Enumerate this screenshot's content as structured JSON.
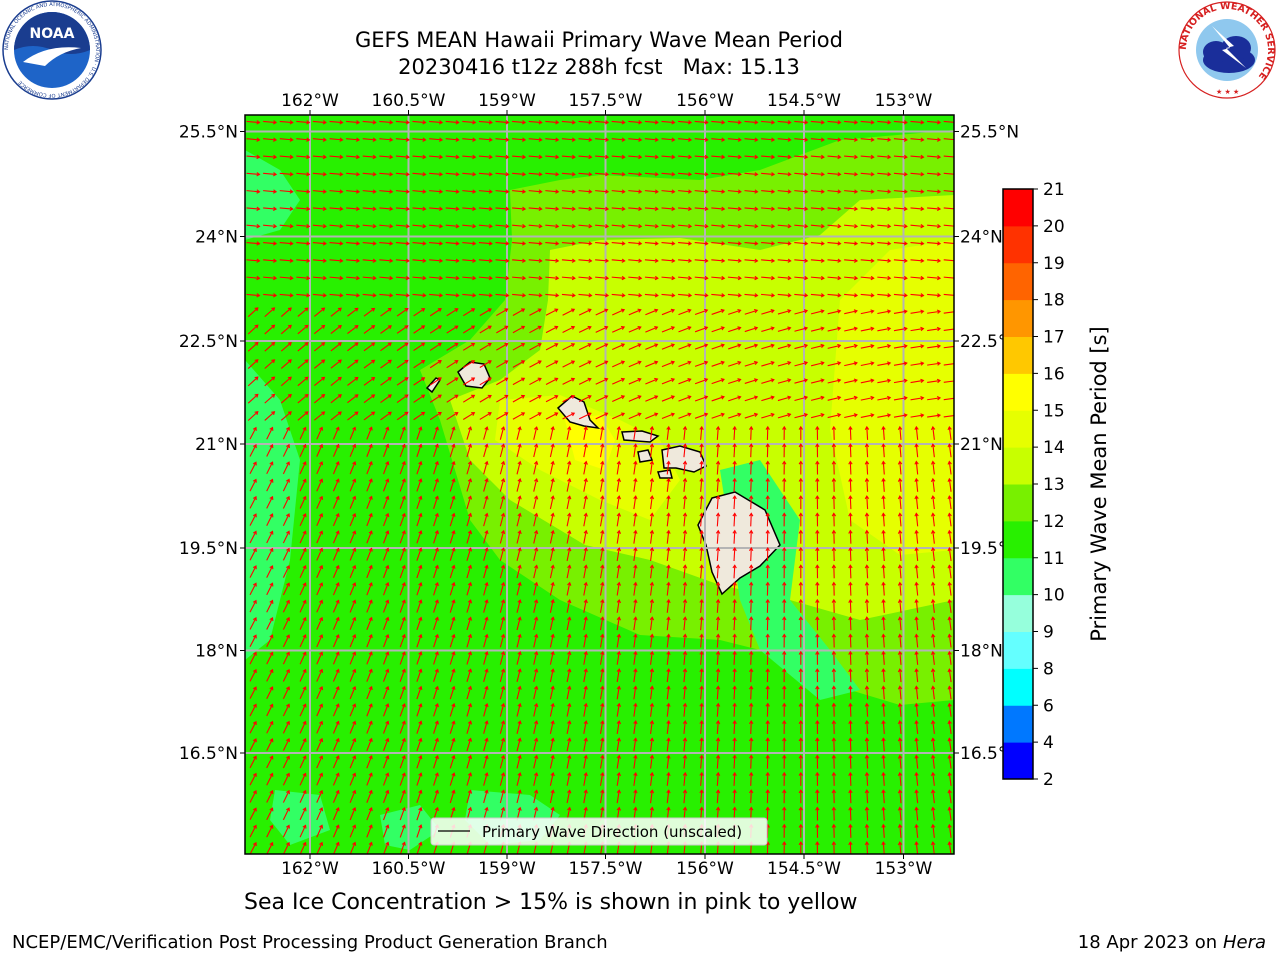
{
  "title_line1": "GEFS MEAN Hawaii Primary Wave Mean Period",
  "title_line2": "20230416 t12z 288h fcst   Max: 15.13",
  "logos": {
    "noaa_text": "NOAA",
    "noaa_ring": "NATIONAL OCEANIC AND ATMOSPHERIC ADMINISTRATION · U.S. DEPARTMENT OF COMMERCE",
    "nws_ring": "NATIONAL WEATHER SERVICE"
  },
  "map": {
    "lon_labels": [
      "162°W",
      "160.5°W",
      "159°W",
      "157.5°W",
      "156°W",
      "154.5°W",
      "153°W"
    ],
    "lat_labels": [
      "25.5°N",
      "24°N",
      "22.5°N",
      "21°N",
      "19.5°N",
      "18°N",
      "16.5°N"
    ],
    "legend_text": "Primary Wave Direction (unscaled)",
    "arrow_color": "#ff0000",
    "land_color": "#efe9dc"
  },
  "colorbar": {
    "label": "Primary Wave Mean Period [s]",
    "ticks": [
      "2",
      "4",
      "6",
      "8",
      "9",
      "10",
      "11",
      "12",
      "13",
      "14",
      "15",
      "16",
      "17",
      "18",
      "19",
      "20",
      "21"
    ],
    "colors": [
      "#0000ff",
      "#0078ff",
      "#00ffff",
      "#64ffff",
      "#96ffdc",
      "#32ff64",
      "#28f000",
      "#78f000",
      "#c8ff00",
      "#e6ff00",
      "#ffff00",
      "#ffc800",
      "#ff9600",
      "#ff6400",
      "#ff3200",
      "#ff0000"
    ]
  },
  "caption": "Sea Ice Concentration > 15% is shown in pink to yellow",
  "footer_left": "NCEP/EMC/Verification Post Processing Product Generation Branch",
  "footer_date": "18 Apr 2023 on",
  "footer_host": "Hera"
}
